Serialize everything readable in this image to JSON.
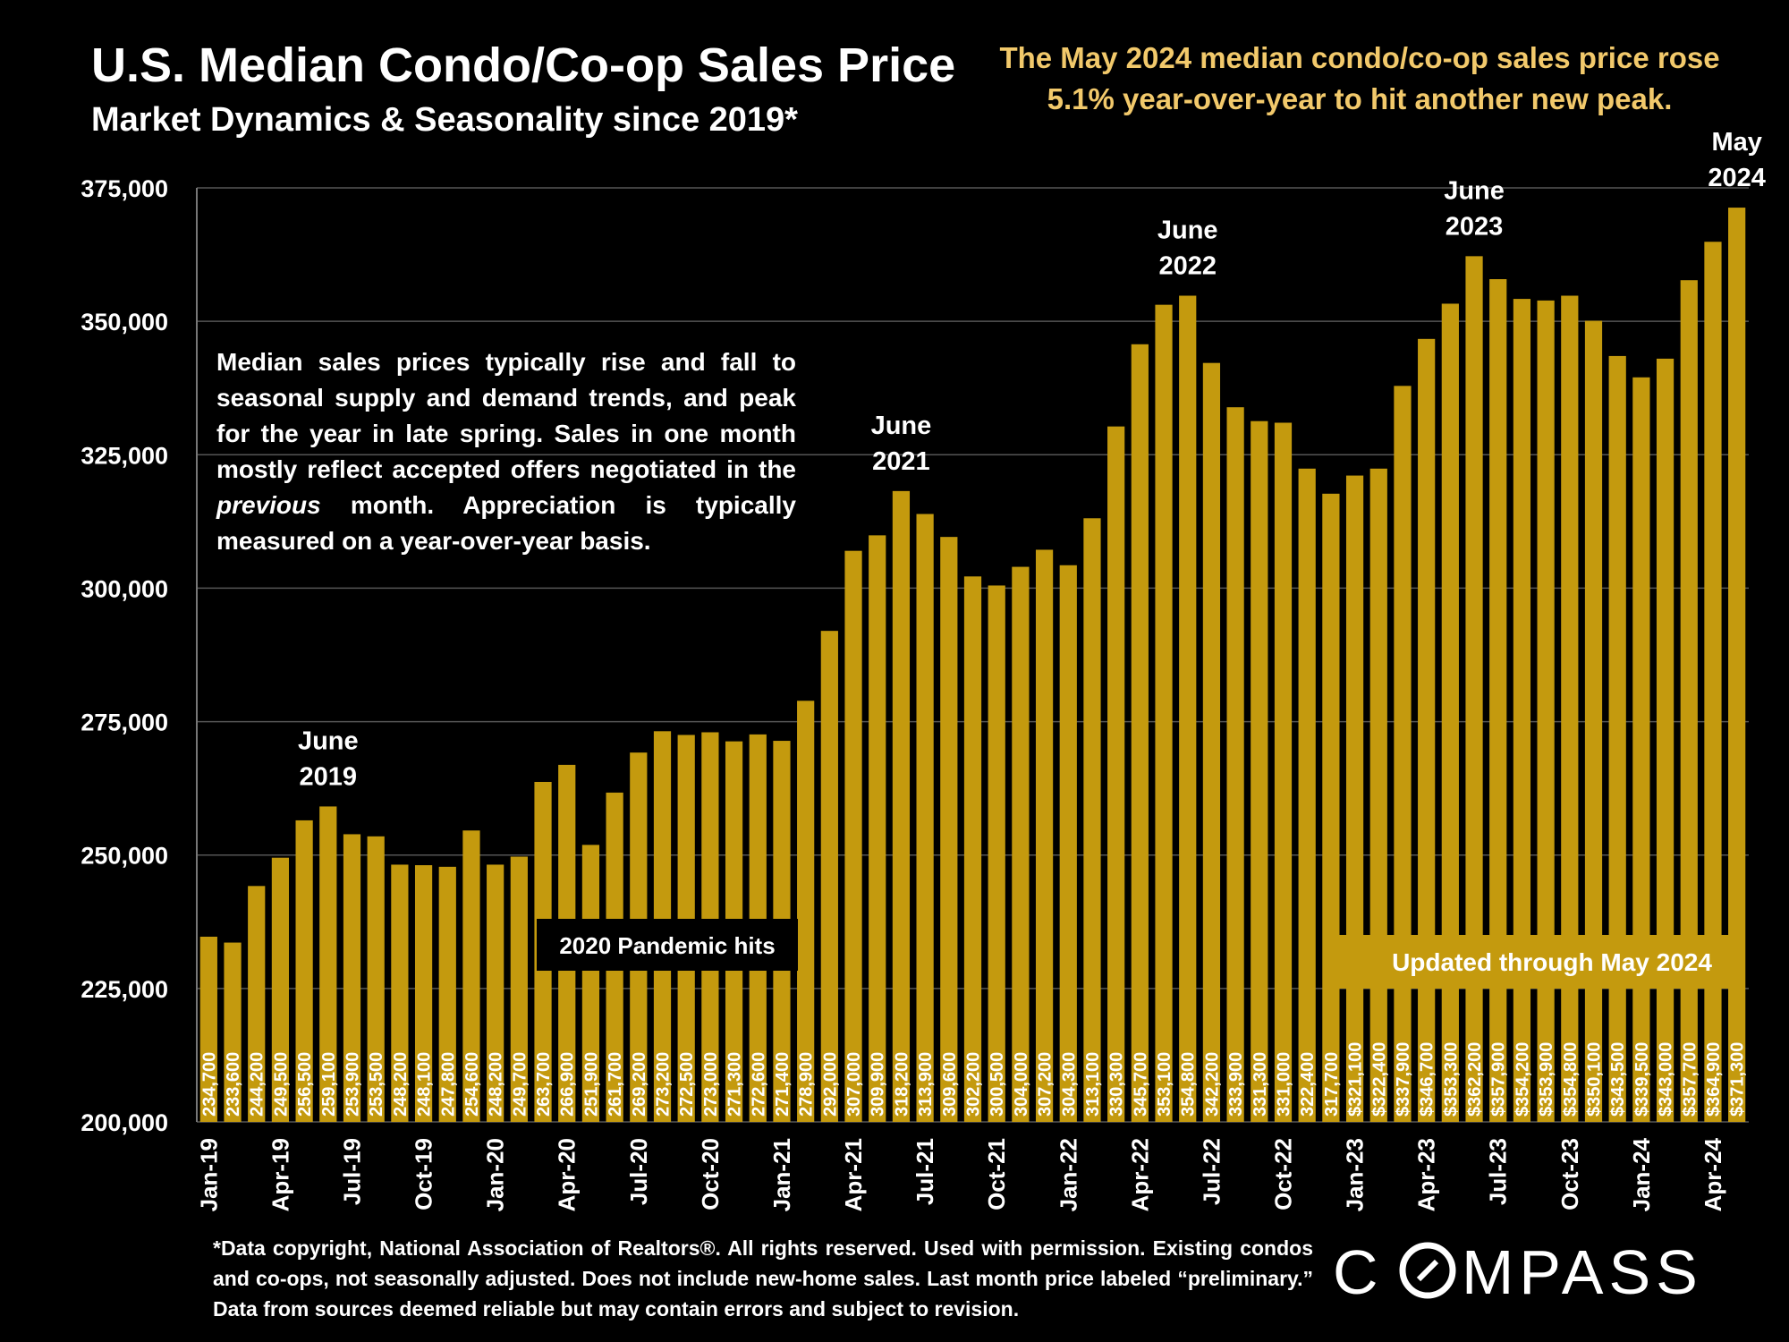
{
  "header": {
    "title": "U.S. Median Condo/Co-op Sales Price",
    "subtitle": "Market Dynamics & Seasonality since 2019*",
    "headline": "The May 2024 median condo/co-op sales price rose 5.1% year-over-year to hit another new peak."
  },
  "note": {
    "part1": "Median sales prices typically rise and fall to seasonal supply and demand trends, and peak for the year in late spring. Sales in one month mostly reflect accepted offers negotiated in the ",
    "italic": "previous",
    "part2": " month. Appreciation is typically measured on a year-over-year basis."
  },
  "footnote": "*Data copyright, National Association of Realtors®. All rights reserved. Used with permission. Existing condos and co-ops, not seasonally adjusted. Does not include new-home sales. Last month price labeled “preliminary.” Data from sources deemed reliable but may contain errors and subject to revision.",
  "logo": {
    "text": "COMPASS"
  },
  "colors": {
    "bar": "#c49a0e",
    "grid": "#555555",
    "label": "#ffffff",
    "headline": "#f2c96b",
    "background": "#000000"
  },
  "chart_data": {
    "type": "bar",
    "ylim": [
      200000,
      375000
    ],
    "yticks": [
      "200,000",
      "225,000",
      "250,000",
      "275,000",
      "300,000",
      "325,000",
      "350,000",
      "375,000"
    ],
    "ytick_values": [
      200000,
      225000,
      250000,
      275000,
      300000,
      325000,
      350000,
      375000
    ],
    "grid": true,
    "months": [
      "Jan-19",
      "Feb-19",
      "Mar-19",
      "Apr-19",
      "May-19",
      "Jun-19",
      "Jul-19",
      "Aug-19",
      "Sep-19",
      "Oct-19",
      "Nov-19",
      "Dec-19",
      "Jan-20",
      "Feb-20",
      "Mar-20",
      "Apr-20",
      "May-20",
      "Jun-20",
      "Jul-20",
      "Aug-20",
      "Sep-20",
      "Oct-20",
      "Nov-20",
      "Dec-20",
      "Jan-21",
      "Feb-21",
      "Mar-21",
      "Apr-21",
      "May-21",
      "Jun-21",
      "Jul-21",
      "Aug-21",
      "Sep-21",
      "Oct-21",
      "Nov-21",
      "Dec-21",
      "Jan-22",
      "Feb-22",
      "Mar-22",
      "Apr-22",
      "May-22",
      "Jun-22",
      "Jul-22",
      "Aug-22",
      "Sep-22",
      "Oct-22",
      "Nov-22",
      "Dec-22",
      "Jan-23",
      "Feb-23",
      "Mar-23",
      "Apr-23",
      "May-23",
      "Jun-23",
      "Jul-23",
      "Aug-23",
      "Sep-23",
      "Oct-23",
      "Nov-23",
      "Dec-23",
      "Jan-24",
      "Feb-24",
      "Mar-24",
      "Apr-24",
      "May-24"
    ],
    "x_tick_labels": [
      "Jan-19",
      "",
      "",
      "Apr-19",
      "",
      "",
      "Jul-19",
      "",
      "",
      "Oct-19",
      "",
      "",
      "Jan-20",
      "",
      "",
      "Apr-20",
      "",
      "",
      "Jul-20",
      "",
      "",
      "Oct-20",
      "",
      "",
      "Jan-21",
      "",
      "",
      "Apr-21",
      "",
      "",
      "Jul-21",
      "",
      "",
      "Oct-21",
      "",
      "",
      "Jan-22",
      "",
      "",
      "Apr-22",
      "",
      "",
      "Jul-22",
      "",
      "",
      "Oct-22",
      "",
      "",
      "Jan-23",
      "",
      "",
      "Apr-23",
      "",
      "",
      "Jul-23",
      "",
      "",
      "Oct-23",
      "",
      "",
      "Jan-24",
      "",
      "",
      "Apr-24",
      ""
    ],
    "values": [
      234700,
      233600,
      244200,
      249500,
      256500,
      259100,
      253900,
      253500,
      248200,
      248100,
      247800,
      254600,
      248200,
      249700,
      263700,
      266900,
      251900,
      261700,
      269200,
      273200,
      272500,
      273000,
      271300,
      272600,
      271400,
      278900,
      292000,
      307000,
      309900,
      318200,
      313900,
      309600,
      302200,
      300500,
      304000,
      307200,
      304300,
      313100,
      330300,
      345700,
      353100,
      354800,
      342200,
      333900,
      331300,
      331000,
      322400,
      317700,
      321100,
      322400,
      337900,
      346700,
      353300,
      362200,
      357900,
      354200,
      353900,
      354800,
      350100,
      343500,
      339500,
      343000,
      357700,
      364900,
      371300
    ],
    "data_labels": [
      "234,700",
      "233,600",
      "244,200",
      "249,500",
      "256,500",
      "259,100",
      "253,900",
      "253,500",
      "248,200",
      "248,100",
      "247,800",
      "254,600",
      "248,200",
      "249,700",
      "263,700",
      "266,900",
      "251,900",
      "261,700",
      "269,200",
      "273,200",
      "272,500",
      "273,000",
      "271,300",
      "272,600",
      "271,400",
      "278,900",
      "292,000",
      "307,000",
      "309,900",
      "318,200",
      "313,900",
      "309,600",
      "302,200",
      "300,500",
      "304,000",
      "307,200",
      "304,300",
      "313,100",
      "330,300",
      "345,700",
      "353,100",
      "354,800",
      "342,200",
      "333,900",
      "331,300",
      "331,000",
      "322,400",
      "317,700",
      "$321,100",
      "$322,400",
      "$337,900",
      "$346,700",
      "$353,300",
      "$362,200",
      "$357,900",
      "$354,200",
      "$353,900",
      "$354,800",
      "$350,100",
      "$343,500",
      "$339,500",
      "$343,000",
      "$357,700",
      "$364,900",
      "$371,300"
    ],
    "annotations": [
      {
        "index": 5,
        "lines": [
          "June",
          "2019"
        ]
      },
      {
        "index": 29,
        "lines": [
          "June",
          "2021"
        ]
      },
      {
        "index": 41,
        "lines": [
          "June",
          "2022"
        ]
      },
      {
        "index": 53,
        "lines": [
          "June",
          "2023"
        ]
      },
      {
        "index": 64,
        "lines": [
          "May",
          "2024"
        ]
      }
    ],
    "callouts": {
      "pandemic": "2020 Pandemic hits",
      "updated": "Updated through May 2024"
    }
  }
}
